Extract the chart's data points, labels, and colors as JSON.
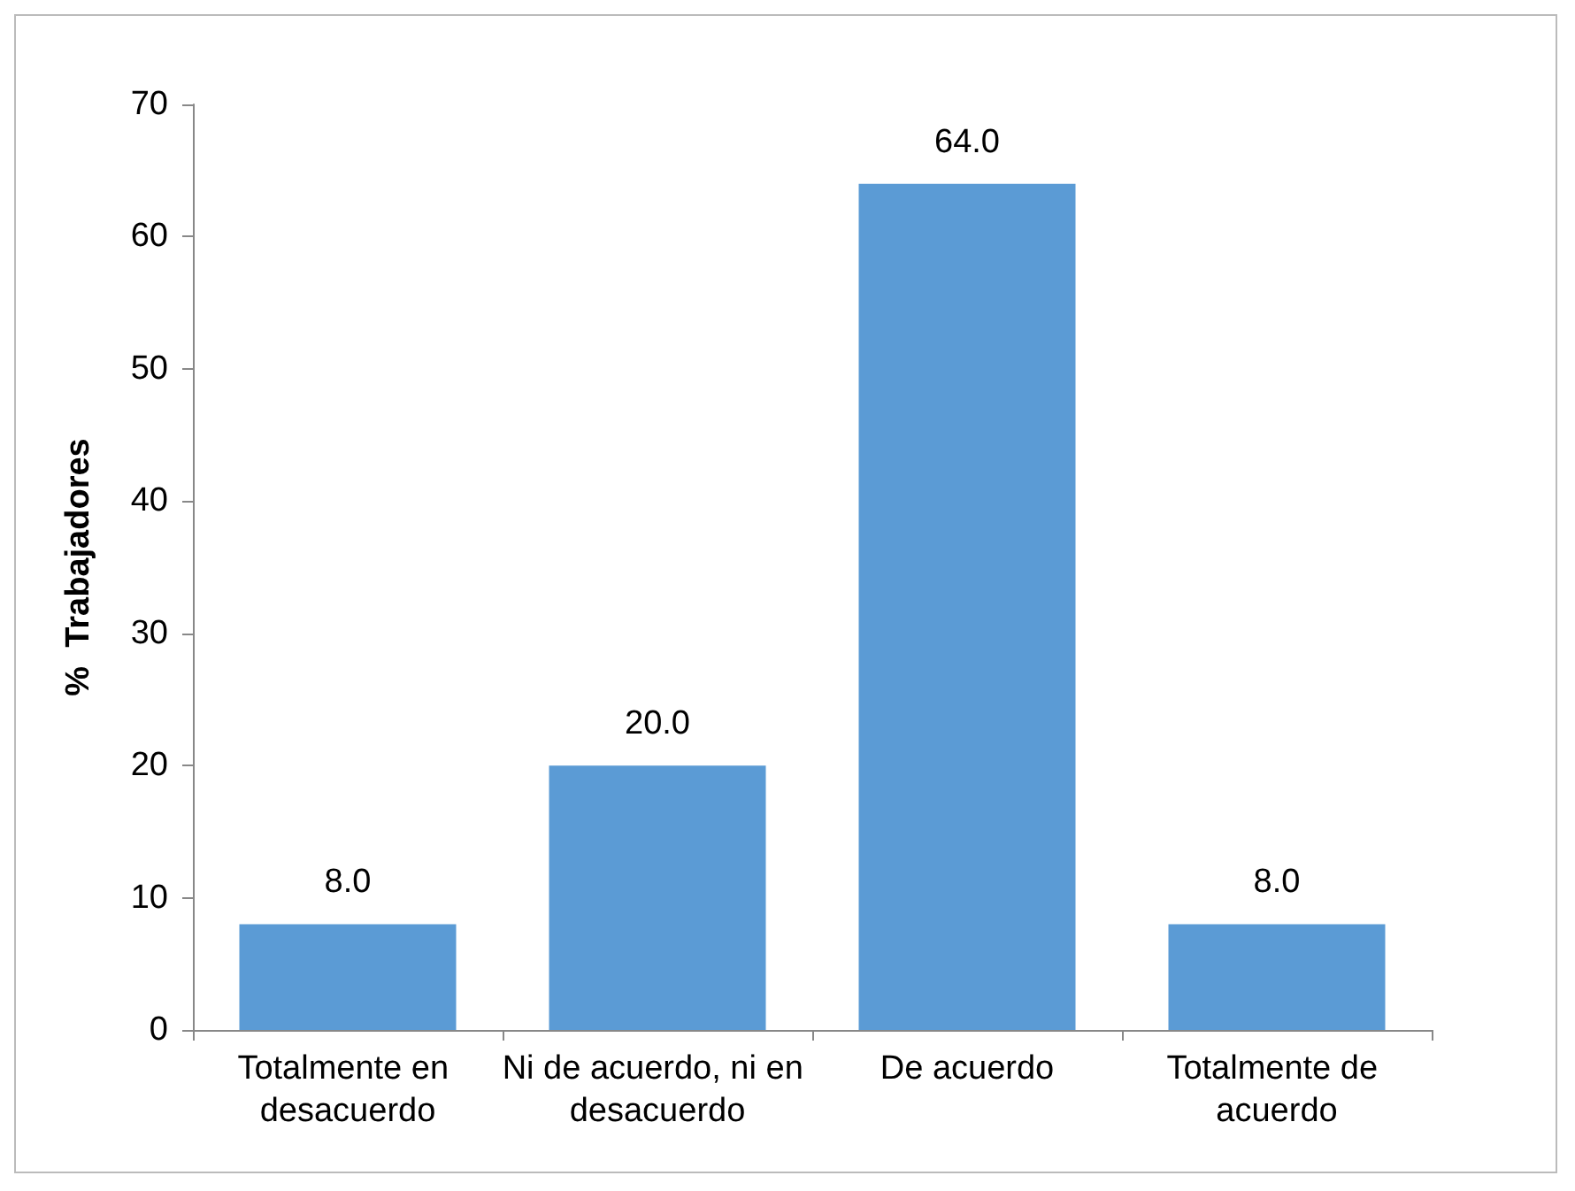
{
  "chart_data": {
    "type": "bar",
    "ylabel": "%  Trabajadores",
    "categories": [
      "Totalmente en desacuerdo",
      "Ni de acuerdo, ni en desacuerdo",
      "De acuerdo",
      "Totalmente de acuerdo"
    ],
    "values": [
      8.0,
      20.0,
      64.0,
      8.0
    ],
    "value_labels": [
      "8.0",
      "20.0",
      "64.0",
      "8.0"
    ],
    "color": "#5b9bd5",
    "ylim": [
      0,
      70
    ],
    "yticks": [
      0,
      10,
      20,
      30,
      40,
      50,
      60,
      70
    ],
    "grid": false
  }
}
